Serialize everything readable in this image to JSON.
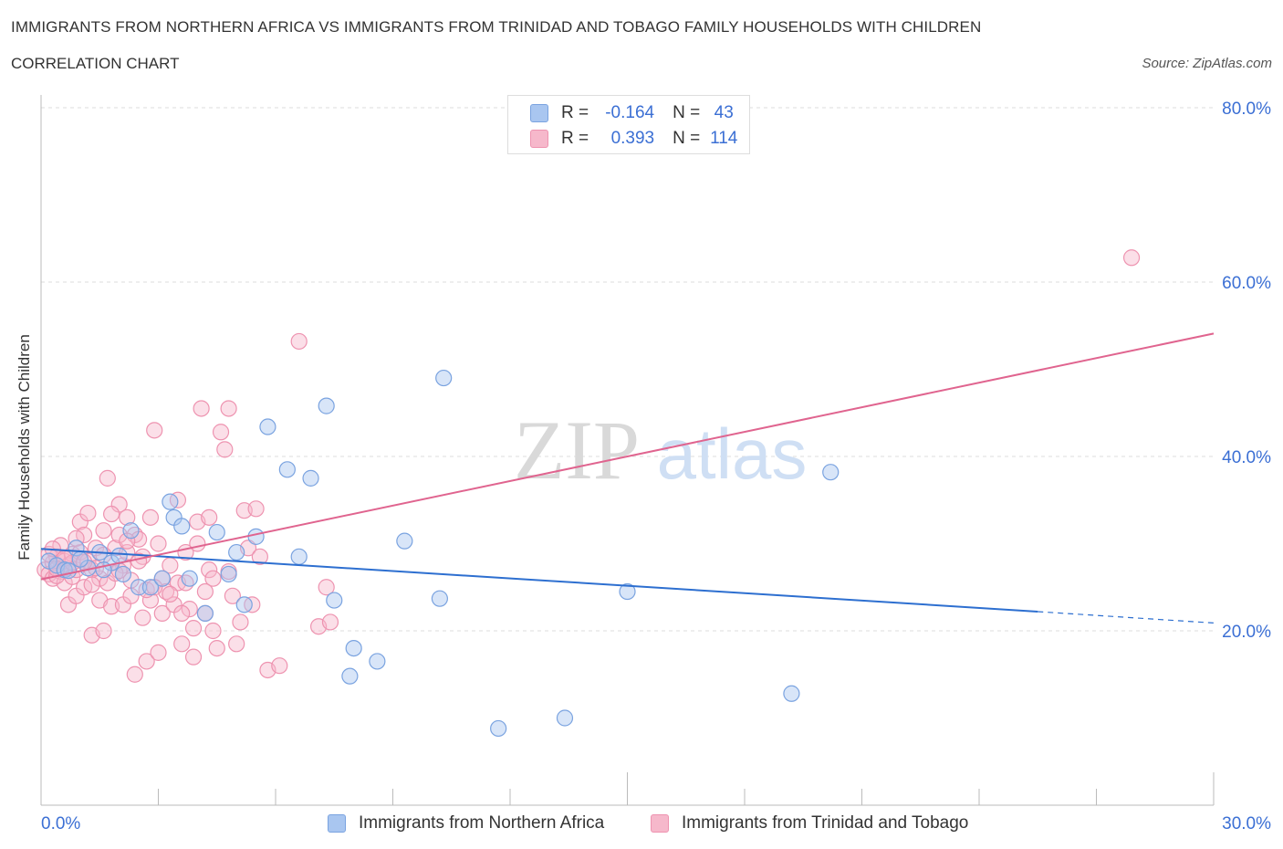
{
  "header": {
    "title": "IMMIGRANTS FROM NORTHERN AFRICA VS IMMIGRANTS FROM TRINIDAD AND TOBAGO FAMILY HOUSEHOLDS WITH CHILDREN",
    "subtitle": "CORRELATION CHART",
    "source": "Source: ZipAtlas.com"
  },
  "legend": {
    "series1": {
      "r_label": "R =",
      "r_value": "-0.164",
      "n_label": "N =",
      "n_value": "43"
    },
    "series2": {
      "r_label": "R =",
      "r_value": "0.393",
      "n_label": "N =",
      "n_value": "114"
    }
  },
  "bottom_legend": {
    "series1": "Immigrants from Northern Africa",
    "series2": "Immigrants from Trinidad and Tobago"
  },
  "watermark": {
    "zip": "ZIP",
    "atlas": "atlas"
  },
  "colors": {
    "blue_fill": "#a9c6f0",
    "blue_stroke": "#7aa3e0",
    "blue_line": "#2d6fd0",
    "pink_fill": "#f6b8cb",
    "pink_stroke": "#ee93b0",
    "pink_line": "#e0648f",
    "axis_label": "#3b6fd4",
    "grid": "#dddddd"
  },
  "chart_data": {
    "type": "scatter",
    "title": "IMMIGRANTS FROM NORTHERN AFRICA VS IMMIGRANTS FROM TRINIDAD AND TOBAGO FAMILY HOUSEHOLDS WITH CHILDREN",
    "xlabel": "",
    "ylabel": "Family Households with Children",
    "xlim": [
      0,
      30
    ],
    "ylim": [
      0,
      80
    ],
    "x_tick_labels": [
      "0.0%",
      "30.0%"
    ],
    "y_ticks": [
      20,
      40,
      60,
      80
    ],
    "y_tick_labels": [
      "20.0%",
      "40.0%",
      "60.0%",
      "80.0%"
    ],
    "grid": true,
    "legend_position": "top-center",
    "series": [
      {
        "name": "Immigrants from Northern Africa",
        "color": "blue",
        "R": -0.164,
        "N": 43,
        "trend": {
          "x0": 0,
          "y0": 29.4,
          "x1": 25.5,
          "y1": 22.2,
          "dashed_to_x": 30,
          "dashed_to_y": 20.9
        },
        "points": [
          [
            0.2,
            28.0
          ],
          [
            0.4,
            27.5
          ],
          [
            0.6,
            27.0
          ],
          [
            0.9,
            29.5
          ],
          [
            1.2,
            27.2
          ],
          [
            1.5,
            29.0
          ],
          [
            1.8,
            27.8
          ],
          [
            2.1,
            26.5
          ],
          [
            2.3,
            31.5
          ],
          [
            2.5,
            25.0
          ],
          [
            2.8,
            25.0
          ],
          [
            3.1,
            26.0
          ],
          [
            3.3,
            34.8
          ],
          [
            3.4,
            33.0
          ],
          [
            3.6,
            32.0
          ],
          [
            3.8,
            26.0
          ],
          [
            4.2,
            22.0
          ],
          [
            4.5,
            31.3
          ],
          [
            4.8,
            26.5
          ],
          [
            5.0,
            29.0
          ],
          [
            5.2,
            23.0
          ],
          [
            5.5,
            30.8
          ],
          [
            5.8,
            43.4
          ],
          [
            6.3,
            38.5
          ],
          [
            6.6,
            28.5
          ],
          [
            6.9,
            37.5
          ],
          [
            7.3,
            45.8
          ],
          [
            7.5,
            23.5
          ],
          [
            7.9,
            14.8
          ],
          [
            8.0,
            18.0
          ],
          [
            8.6,
            16.5
          ],
          [
            9.3,
            30.3
          ],
          [
            10.2,
            23.7
          ],
          [
            10.3,
            49.0
          ],
          [
            11.7,
            8.8
          ],
          [
            13.4,
            10.0
          ],
          [
            15.0,
            24.5
          ],
          [
            19.2,
            12.8
          ],
          [
            20.2,
            38.2
          ],
          [
            1.0,
            28.2
          ],
          [
            0.7,
            26.9
          ],
          [
            1.6,
            27.0
          ],
          [
            2.0,
            28.6
          ]
        ]
      },
      {
        "name": "Immigrants from Trinidad and Tobago",
        "color": "pink",
        "R": 0.393,
        "N": 114,
        "trend": {
          "x0": 0,
          "y0": 25.9,
          "x1": 30,
          "y1": 54.1
        },
        "points": [
          [
            0.1,
            27.0
          ],
          [
            0.2,
            26.5
          ],
          [
            0.3,
            27.8
          ],
          [
            0.3,
            26.0
          ],
          [
            0.4,
            28.5
          ],
          [
            0.5,
            27.2
          ],
          [
            0.5,
            26.8
          ],
          [
            0.6,
            28.0
          ],
          [
            0.6,
            25.5
          ],
          [
            0.7,
            27.5
          ],
          [
            0.7,
            23.0
          ],
          [
            0.8,
            28.8
          ],
          [
            0.8,
            26.2
          ],
          [
            0.9,
            27.0
          ],
          [
            0.9,
            24.0
          ],
          [
            1.0,
            32.5
          ],
          [
            1.0,
            29.0
          ],
          [
            1.1,
            31.0
          ],
          [
            1.1,
            25.0
          ],
          [
            1.2,
            33.5
          ],
          [
            1.2,
            28.0
          ],
          [
            1.3,
            27.0
          ],
          [
            1.3,
            19.5
          ],
          [
            1.4,
            29.5
          ],
          [
            1.5,
            26.0
          ],
          [
            1.5,
            23.5
          ],
          [
            1.6,
            31.5
          ],
          [
            1.6,
            20.0
          ],
          [
            1.7,
            37.5
          ],
          [
            1.7,
            25.5
          ],
          [
            1.8,
            22.8
          ],
          [
            1.9,
            29.5
          ],
          [
            2.0,
            34.5
          ],
          [
            2.0,
            31.0
          ],
          [
            2.1,
            27.5
          ],
          [
            2.1,
            23.0
          ],
          [
            2.2,
            33.0
          ],
          [
            2.2,
            29.0
          ],
          [
            2.3,
            24.0
          ],
          [
            2.4,
            31.0
          ],
          [
            2.4,
            15.0
          ],
          [
            2.5,
            30.5
          ],
          [
            2.6,
            28.5
          ],
          [
            2.6,
            21.5
          ],
          [
            2.7,
            16.5
          ],
          [
            2.8,
            33.0
          ],
          [
            2.8,
            23.5
          ],
          [
            2.9,
            43.0
          ],
          [
            3.0,
            30.0
          ],
          [
            3.0,
            17.5
          ],
          [
            3.1,
            26.0
          ],
          [
            3.1,
            22.0
          ],
          [
            3.2,
            24.5
          ],
          [
            3.3,
            27.5
          ],
          [
            3.4,
            23.0
          ],
          [
            3.5,
            35.0
          ],
          [
            3.5,
            25.5
          ],
          [
            3.6,
            18.5
          ],
          [
            3.7,
            29.0
          ],
          [
            3.8,
            22.5
          ],
          [
            3.9,
            17.0
          ],
          [
            4.0,
            32.5
          ],
          [
            4.0,
            30.0
          ],
          [
            4.1,
            45.5
          ],
          [
            4.2,
            22.0
          ],
          [
            4.3,
            33.0
          ],
          [
            4.3,
            27.0
          ],
          [
            4.4,
            20.0
          ],
          [
            4.5,
            18.0
          ],
          [
            4.6,
            42.8
          ],
          [
            4.7,
            40.8
          ],
          [
            4.8,
            26.8
          ],
          [
            4.9,
            24.0
          ],
          [
            5.0,
            18.5
          ],
          [
            5.1,
            21.0
          ],
          [
            5.2,
            33.8
          ],
          [
            5.3,
            29.5
          ],
          [
            5.5,
            34.0
          ],
          [
            5.6,
            28.5
          ],
          [
            5.8,
            15.5
          ],
          [
            6.1,
            16.0
          ],
          [
            6.6,
            53.2
          ],
          [
            7.1,
            20.5
          ],
          [
            7.3,
            25.0
          ],
          [
            7.4,
            21.0
          ],
          [
            4.8,
            45.5
          ],
          [
            0.2,
            28.8
          ],
          [
            0.4,
            26.3
          ],
          [
            0.8,
            27.8
          ],
          [
            1.4,
            27.2
          ],
          [
            1.9,
            26.6
          ],
          [
            2.3,
            25.8
          ],
          [
            2.7,
            24.7
          ],
          [
            3.3,
            24.2
          ],
          [
            0.5,
            29.8
          ],
          [
            0.9,
            30.6
          ],
          [
            1.3,
            25.3
          ],
          [
            1.8,
            33.4
          ],
          [
            2.5,
            28.0
          ],
          [
            3.7,
            25.5
          ],
          [
            4.4,
            26.0
          ],
          [
            5.4,
            23.0
          ],
          [
            0.3,
            29.4
          ],
          [
            0.6,
            28.3
          ],
          [
            1.1,
            27.9
          ],
          [
            2.0,
            26.9
          ],
          [
            2.9,
            25.0
          ],
          [
            3.6,
            22.0
          ],
          [
            27.9,
            62.8
          ],
          [
            4.2,
            24.5
          ],
          [
            1.6,
            28.7
          ],
          [
            0.4,
            27.1
          ],
          [
            3.9,
            20.3
          ],
          [
            2.2,
            30.3
          ]
        ]
      }
    ]
  }
}
